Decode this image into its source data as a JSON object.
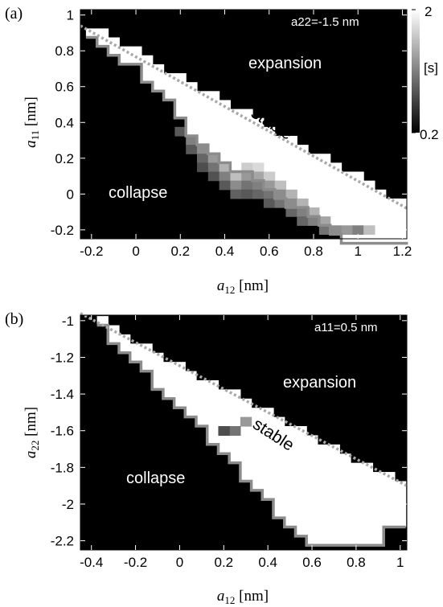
{
  "chart_data": [
    {
      "type": "heatmap",
      "panel": "(a)",
      "parameter": "a22=-1.5 nm",
      "xlabel_var": "a",
      "xlabel_sub": "12",
      "xlabel_unit": " [nm]",
      "ylabel_var": "a",
      "ylabel_sub": "11",
      "ylabel_unit": " [nm]",
      "xlim": [
        -0.25,
        1.22
      ],
      "ylim": [
        -0.25,
        1.03
      ],
      "xticks": [
        -0.2,
        0,
        0.2,
        0.4,
        0.6,
        0.8,
        1,
        1.2
      ],
      "xtick_labels": [
        "-0.2",
        "0",
        "0.2",
        "0.4",
        "0.6",
        "0.8",
        "1",
        "1.2"
      ],
      "yticks": [
        -0.2,
        0,
        0.2,
        0.4,
        0.6,
        0.8,
        1
      ],
      "ytick_labels": [
        "-0.2",
        "0",
        "0.2",
        "0.4",
        "0.6",
        "0.8",
        "1"
      ],
      "region_labels": {
        "expansion": "expansion",
        "stable": "stable",
        "collapse": "collapse"
      },
      "colorbar": {
        "label": "[s]",
        "min": 0.2,
        "max": 2,
        "min_label": "0.2",
        "max_label": "2"
      },
      "cell_size": 0.05,
      "expansion_boundary": {
        "x": [
          -0.25,
          1.22
        ],
        "y": [
          0.94,
          -0.08
        ]
      },
      "stable_band": [
        {
          "x": -0.2,
          "y_low": 0.9,
          "y_high": 0.9
        },
        {
          "x": -0.15,
          "y_low": 0.86,
          "y_high": 0.88
        },
        {
          "x": -0.1,
          "y_low": 0.82,
          "y_high": 0.85
        },
        {
          "x": -0.05,
          "y_low": 0.77,
          "y_high": 0.81
        },
        {
          "x": 0.0,
          "y_low": 0.73,
          "y_high": 0.78
        },
        {
          "x": 0.05,
          "y_low": 0.67,
          "y_high": 0.74
        },
        {
          "x": 0.1,
          "y_low": 0.61,
          "y_high": 0.71
        },
        {
          "x": 0.15,
          "y_low": 0.53,
          "y_high": 0.67
        },
        {
          "x": 0.2,
          "y_low": 0.45,
          "y_high": 0.64
        },
        {
          "x": 0.25,
          "y_low": 0.37,
          "y_high": 0.6
        },
        {
          "x": 0.3,
          "y_low": 0.3,
          "y_high": 0.57
        },
        {
          "x": 0.35,
          "y_low": 0.25,
          "y_high": 0.53
        },
        {
          "x": 0.4,
          "y_low": 0.21,
          "y_high": 0.5
        },
        {
          "x": 0.45,
          "y_low": 0.17,
          "y_high": 0.46
        },
        {
          "x": 0.5,
          "y_low": 0.13,
          "y_high": 0.43
        },
        {
          "x": 0.55,
          "y_low": 0.09,
          "y_high": 0.39
        },
        {
          "x": 0.6,
          "y_low": 0.05,
          "y_high": 0.36
        },
        {
          "x": 0.65,
          "y_low": 0.01,
          "y_high": 0.32
        },
        {
          "x": 0.7,
          "y_low": -0.03,
          "y_high": 0.29
        },
        {
          "x": 0.75,
          "y_low": -0.07,
          "y_high": 0.25
        },
        {
          "x": 0.8,
          "y_low": -0.11,
          "y_high": 0.22
        },
        {
          "x": 0.85,
          "y_low": -0.15,
          "y_high": 0.18
        },
        {
          "x": 0.9,
          "y_low": -0.19,
          "y_high": 0.15
        },
        {
          "x": 0.95,
          "y_low": -0.25,
          "y_high": 0.11
        },
        {
          "x": 1.0,
          "y_low": -0.25,
          "y_high": 0.08
        },
        {
          "x": 1.05,
          "y_low": -0.25,
          "y_high": 0.04
        },
        {
          "x": 1.1,
          "y_low": -0.25,
          "y_high": 0.01
        },
        {
          "x": 1.15,
          "y_low": -0.25,
          "y_high": -0.03
        },
        {
          "x": 1.2,
          "y_low": -0.25,
          "y_high": -0.06
        }
      ],
      "intermediate_cells": [
        {
          "x": 0.2,
          "y": 0.35,
          "v": 0.35
        },
        {
          "x": 0.25,
          "y": 0.3,
          "v": 0.5
        },
        {
          "x": 0.25,
          "y": 0.25,
          "v": 0.35
        },
        {
          "x": 0.3,
          "y": 0.25,
          "v": 0.55
        },
        {
          "x": 0.3,
          "y": 0.2,
          "v": 0.4
        },
        {
          "x": 0.3,
          "y": 0.15,
          "v": 0.3
        },
        {
          "x": 0.35,
          "y": 0.2,
          "v": 0.6
        },
        {
          "x": 0.35,
          "y": 0.15,
          "v": 0.45
        },
        {
          "x": 0.35,
          "y": 0.1,
          "v": 0.32
        },
        {
          "x": 0.4,
          "y": 0.15,
          "v": 0.7
        },
        {
          "x": 0.4,
          "y": 0.1,
          "v": 0.5
        },
        {
          "x": 0.4,
          "y": 0.05,
          "v": 0.35
        },
        {
          "x": 0.45,
          "y": 0.1,
          "v": 0.75
        },
        {
          "x": 0.45,
          "y": 0.05,
          "v": 0.55
        },
        {
          "x": 0.45,
          "y": 0.0,
          "v": 0.38
        },
        {
          "x": 0.5,
          "y": 0.15,
          "v": 0.8
        },
        {
          "x": 0.5,
          "y": 0.1,
          "v": 0.6
        },
        {
          "x": 0.5,
          "y": 0.05,
          "v": 0.45
        },
        {
          "x": 0.5,
          "y": 0.0,
          "v": 0.35
        },
        {
          "x": 0.55,
          "y": 0.15,
          "v": 0.85
        },
        {
          "x": 0.55,
          "y": 0.1,
          "v": 0.65
        },
        {
          "x": 0.55,
          "y": 0.05,
          "v": 0.5
        },
        {
          "x": 0.55,
          "y": 0.0,
          "v": 0.4
        },
        {
          "x": 0.6,
          "y": 0.1,
          "v": 0.8
        },
        {
          "x": 0.6,
          "y": 0.05,
          "v": 0.6
        },
        {
          "x": 0.6,
          "y": 0.0,
          "v": 0.45
        },
        {
          "x": 0.6,
          "y": -0.05,
          "v": 0.35
        },
        {
          "x": 0.65,
          "y": 0.05,
          "v": 0.75
        },
        {
          "x": 0.65,
          "y": 0.0,
          "v": 0.55
        },
        {
          "x": 0.65,
          "y": -0.05,
          "v": 0.45
        },
        {
          "x": 0.7,
          "y": 0.0,
          "v": 0.7
        },
        {
          "x": 0.7,
          "y": -0.05,
          "v": 0.55
        },
        {
          "x": 0.7,
          "y": -0.1,
          "v": 0.4
        },
        {
          "x": 0.75,
          "y": -0.05,
          "v": 0.7
        },
        {
          "x": 0.75,
          "y": -0.1,
          "v": 0.5
        },
        {
          "x": 0.75,
          "y": -0.15,
          "v": 0.4
        },
        {
          "x": 0.8,
          "y": -0.1,
          "v": 0.7
        },
        {
          "x": 0.8,
          "y": -0.15,
          "v": 0.5
        },
        {
          "x": 0.85,
          "y": -0.15,
          "v": 0.65
        },
        {
          "x": 0.85,
          "y": -0.2,
          "v": 0.45
        },
        {
          "x": 0.9,
          "y": -0.2,
          "v": 0.55
        },
        {
          "x": 0.95,
          "y": -0.2,
          "v": 0.6
        },
        {
          "x": 1.0,
          "y": -0.2,
          "v": 0.5
        },
        {
          "x": 1.05,
          "y": -0.2,
          "v": 0.75
        }
      ]
    },
    {
      "type": "heatmap",
      "panel": "(b)",
      "parameter": "a11=0.5 nm",
      "xlabel_var": "a",
      "xlabel_sub": "12",
      "xlabel_unit": " [nm]",
      "ylabel_var": "a",
      "ylabel_sub": "22",
      "ylabel_unit": " [nm]",
      "xlim": [
        -0.45,
        1.03
      ],
      "ylim": [
        -2.25,
        -0.97
      ],
      "xticks": [
        -0.4,
        -0.2,
        0,
        0.2,
        0.4,
        0.6,
        0.8,
        1
      ],
      "xtick_labels": [
        "-0.4",
        "-0.2",
        "0",
        "0.2",
        "0.4",
        "0.6",
        "0.8",
        "1"
      ],
      "yticks": [
        -2.2,
        -2,
        -1.8,
        -1.6,
        -1.4,
        -1.2,
        -1
      ],
      "ytick_labels": [
        "-2.2",
        "-2",
        "-1.8",
        "-1.6",
        "-1.4",
        "-1.2",
        "-1"
      ],
      "region_labels": {
        "expansion": "expansion",
        "stable": "stable",
        "collapse": "collapse"
      },
      "cell_size": 0.05,
      "expansion_boundary": {
        "x": [
          -0.45,
          1.03
        ],
        "y": [
          -0.96,
          -1.9
        ]
      },
      "stable_band": [
        {
          "x": -0.35,
          "y_low": -1.02,
          "y_high": -1.02
        },
        {
          "x": -0.3,
          "y_low": -1.08,
          "y_high": -1.07
        },
        {
          "x": -0.25,
          "y_low": -1.14,
          "y_high": -1.1
        },
        {
          "x": -0.2,
          "y_low": -1.21,
          "y_high": -1.13
        },
        {
          "x": -0.15,
          "y_low": -1.27,
          "y_high": -1.16
        },
        {
          "x": -0.1,
          "y_low": -1.33,
          "y_high": -1.2
        },
        {
          "x": -0.05,
          "y_low": -1.39,
          "y_high": -1.23
        },
        {
          "x": 0.0,
          "y_low": -1.45,
          "y_high": -1.26
        },
        {
          "x": 0.05,
          "y_low": -1.51,
          "y_high": -1.29
        },
        {
          "x": 0.1,
          "y_low": -1.57,
          "y_high": -1.33
        },
        {
          "x": 0.15,
          "y_low": -1.64,
          "y_high": -1.36
        },
        {
          "x": 0.2,
          "y_low": -1.7,
          "y_high": -1.39
        },
        {
          "x": 0.25,
          "y_low": -1.76,
          "y_high": -1.42
        },
        {
          "x": 0.3,
          "y_low": -1.83,
          "y_high": -1.46
        },
        {
          "x": 0.35,
          "y_low": -1.9,
          "y_high": -1.49
        },
        {
          "x": 0.4,
          "y_low": -1.97,
          "y_high": -1.52
        },
        {
          "x": 0.45,
          "y_low": -2.04,
          "y_high": -1.55
        },
        {
          "x": 0.5,
          "y_low": -2.1,
          "y_high": -1.59
        },
        {
          "x": 0.55,
          "y_low": -2.16,
          "y_high": -1.62
        },
        {
          "x": 0.6,
          "y_low": -2.2,
          "y_high": -1.65
        },
        {
          "x": 0.65,
          "y_low": -2.22,
          "y_high": -1.68
        },
        {
          "x": 0.7,
          "y_low": -2.22,
          "y_high": -1.72
        },
        {
          "x": 0.75,
          "y_low": -2.22,
          "y_high": -1.75
        },
        {
          "x": 0.8,
          "y_low": -2.22,
          "y_high": -1.78
        },
        {
          "x": 0.85,
          "y_low": -2.22,
          "y_high": -1.81
        },
        {
          "x": 0.9,
          "y_low": -2.18,
          "y_high": -1.84
        },
        {
          "x": 0.95,
          "y_low": -2.12,
          "y_high": -1.87
        },
        {
          "x": 1.0,
          "y_low": -2.12,
          "y_high": -1.9
        }
      ],
      "intermediate_cells": [
        {
          "x": 0.3,
          "y": -1.55,
          "v": 0.6
        },
        {
          "x": 0.25,
          "y": -1.6,
          "v": 0.45
        },
        {
          "x": 0.2,
          "y": -1.6,
          "v": 0.3
        }
      ]
    }
  ]
}
